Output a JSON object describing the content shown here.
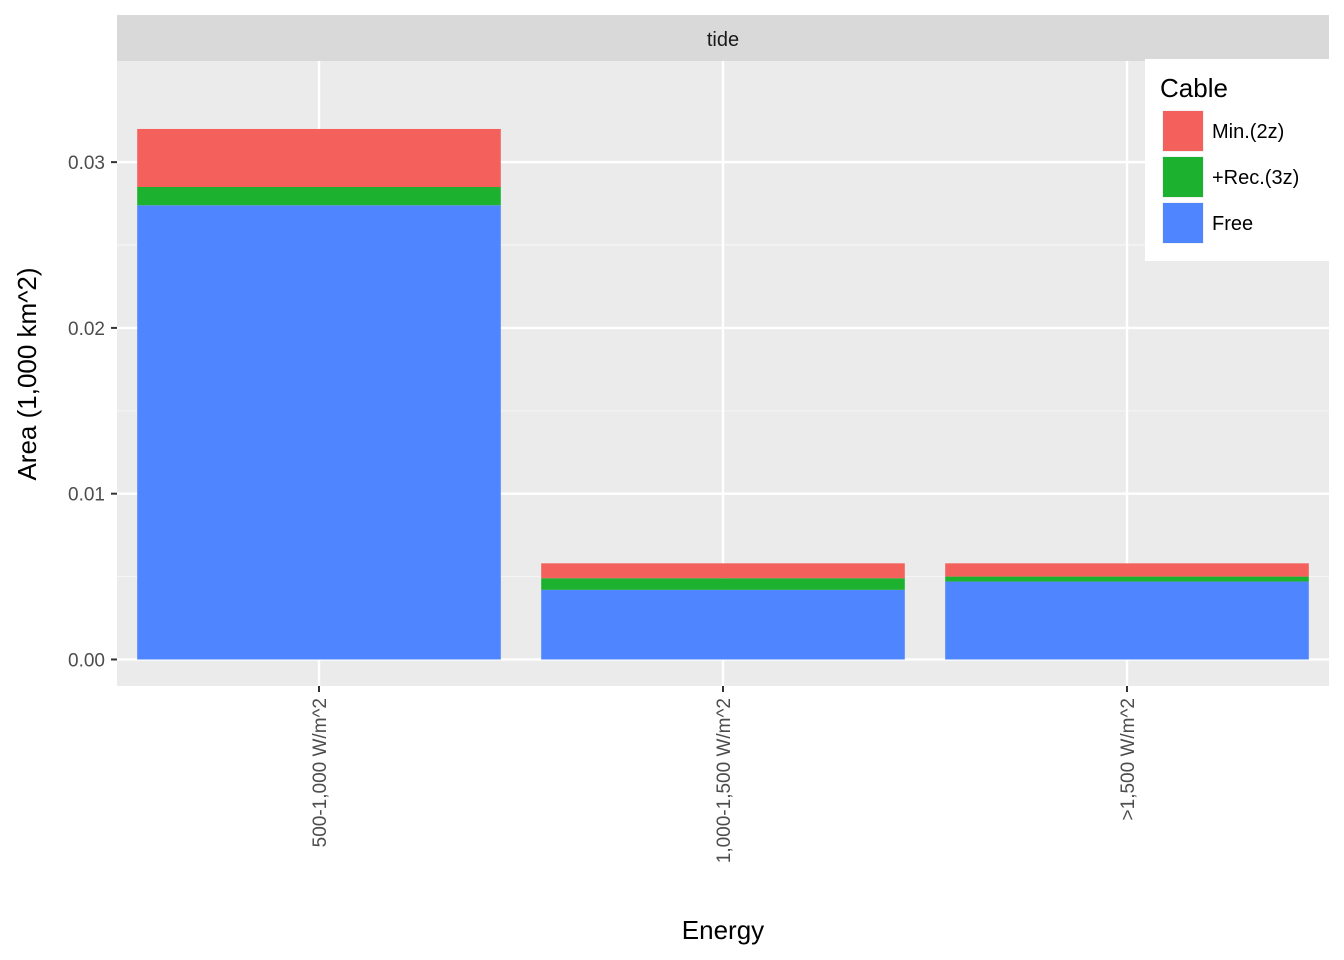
{
  "chart_data": {
    "type": "bar",
    "stacked": true,
    "facet_label": "tide",
    "categories": [
      "500-1,000 W/m^2",
      "1,000-1,500 W/m^2",
      ">1,500 W/m^2"
    ],
    "series": [
      {
        "name": "Free",
        "color": "#4F86FF",
        "values": [
          0.0274,
          0.0042,
          0.0047
        ]
      },
      {
        "name": "+Rec.(3z)",
        "color": "#1CB22F",
        "values": [
          0.0011,
          0.0007,
          0.0003
        ]
      },
      {
        "name": "Min.(2z)",
        "color": "#F4605B",
        "values": [
          0.0035,
          0.0009,
          0.0008
        ]
      }
    ],
    "xlabel": "Energy",
    "ylabel": "Area (1,000 km^2)",
    "ylim": [
      -0.0016,
      0.0361
    ],
    "yticks": [
      0.0,
      0.01,
      0.02,
      0.03
    ],
    "ytick_labels": [
      "0.00",
      "0.01",
      "0.02",
      "0.03"
    ],
    "grid": true,
    "legend": {
      "title": "Cable",
      "position": "top-right",
      "order": [
        "Min.(2z)",
        "+Rec.(3z)",
        "Free"
      ]
    }
  }
}
